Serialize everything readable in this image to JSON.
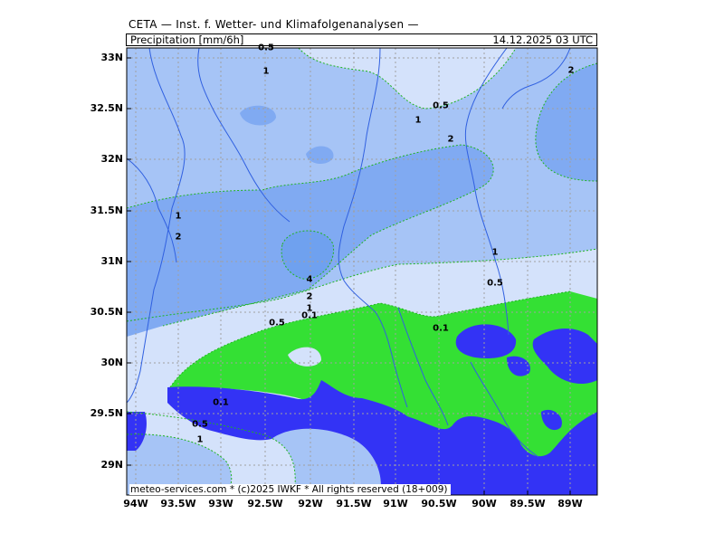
{
  "header": {
    "title": "CETA — Inst. f. Wetter- und Klimafolgenanalysen —",
    "field": "Precipitation [mm/6h]",
    "valid_time": "14.12.2025 03 UTC"
  },
  "footer": {
    "copyright": "meteo-services.com * (c)2025 IWKF * All rights reserved (18+009)"
  },
  "axes": {
    "lat_labels": [
      "33N",
      "32.5N",
      "32N",
      "31.5N",
      "31N",
      "30.5N",
      "30N",
      "29.5N",
      "29N"
    ],
    "lon_labels": [
      "94W",
      "93.5W",
      "93W",
      "92.5W",
      "92W",
      "91.5W",
      "91W",
      "90.5W",
      "90W",
      "89.5W",
      "89W"
    ]
  },
  "contour_labels": [
    "0.5",
    "1",
    "0.5",
    "1",
    "2",
    "2",
    "1",
    "2",
    "4",
    "2",
    "1",
    "0.5",
    "0.1",
    "1",
    "0.5",
    "0.1",
    "0.1",
    "0.5",
    "1"
  ],
  "legend_colors": {
    "ocean": "#3333f5",
    "above_4": "#6fa1ef",
    "range_2_4": "#80aaf2",
    "range_1_2": "#a6c4f6",
    "range_05_1": "#d4e2fb",
    "below_01": "#34e034",
    "contour_line": "#1fb41f",
    "river": "#3060e0",
    "grid": "#a0a0a0"
  }
}
